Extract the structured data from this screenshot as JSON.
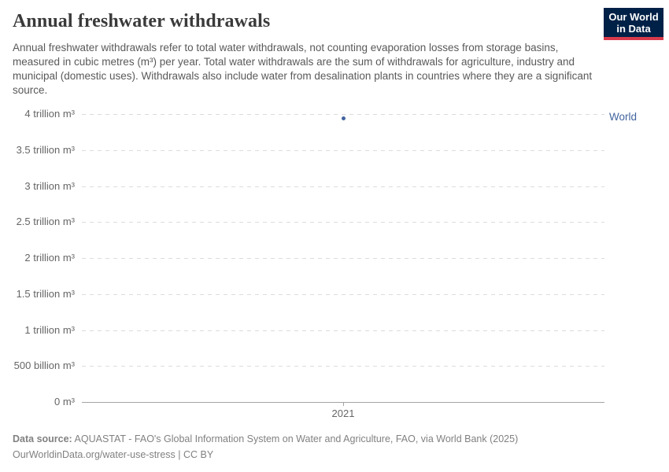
{
  "header": {
    "title": "Annual freshwater withdrawals",
    "subtitle": "Annual freshwater withdrawals refer to total water withdrawals, not counting evaporation losses from storage basins, measured in cubic metres (m³) per year. Total water withdrawals are the sum of withdrawals for agriculture, industry and municipal (domestic uses). Withdrawals also include water from desalination plants in countries where they are a significant source."
  },
  "logo": {
    "line1": "Our World",
    "line2": "in Data",
    "bg_color": "#002147",
    "accent_color": "#d93a4c"
  },
  "chart_data": {
    "type": "scatter",
    "title": "Annual freshwater withdrawals",
    "xlabel": "",
    "ylabel": "",
    "unit": "m³",
    "ylim": [
      0,
      4000000000000
    ],
    "grid": "horizontal-dashed",
    "legend_position": "right-of-point",
    "x": [
      2021
    ],
    "series": [
      {
        "name": "World",
        "values": [
          3940000000000
        ]
      }
    ],
    "yticks": [
      {
        "label": "0 m³",
        "value": 0
      },
      {
        "label": "500 billion m³",
        "value": 500000000000
      },
      {
        "label": "1 trillion m³",
        "value": 1000000000000
      },
      {
        "label": "1.5 trillion m³",
        "value": 1500000000000
      },
      {
        "label": "2 trillion m³",
        "value": 2000000000000
      },
      {
        "label": "2.5 trillion m³",
        "value": 2500000000000
      },
      {
        "label": "3 trillion m³",
        "value": 3000000000000
      },
      {
        "label": "3.5 trillion m³",
        "value": 3500000000000
      },
      {
        "label": "4 trillion m³",
        "value": 4000000000000
      }
    ],
    "xticks": [
      {
        "label": "2021",
        "value": 2021
      }
    ],
    "colors": {
      "world": "#42649f",
      "grid": "#dcdcdc",
      "axis": "#a3a3a3"
    }
  },
  "footer": {
    "source_label": "Data source:",
    "source_text": " AQUASTAT - FAO's Global Information System on Water and Agriculture, FAO, via World Bank (2025)",
    "url": "OurWorldinData.org/water-use-stress",
    "separator": " | ",
    "license": "CC BY"
  }
}
